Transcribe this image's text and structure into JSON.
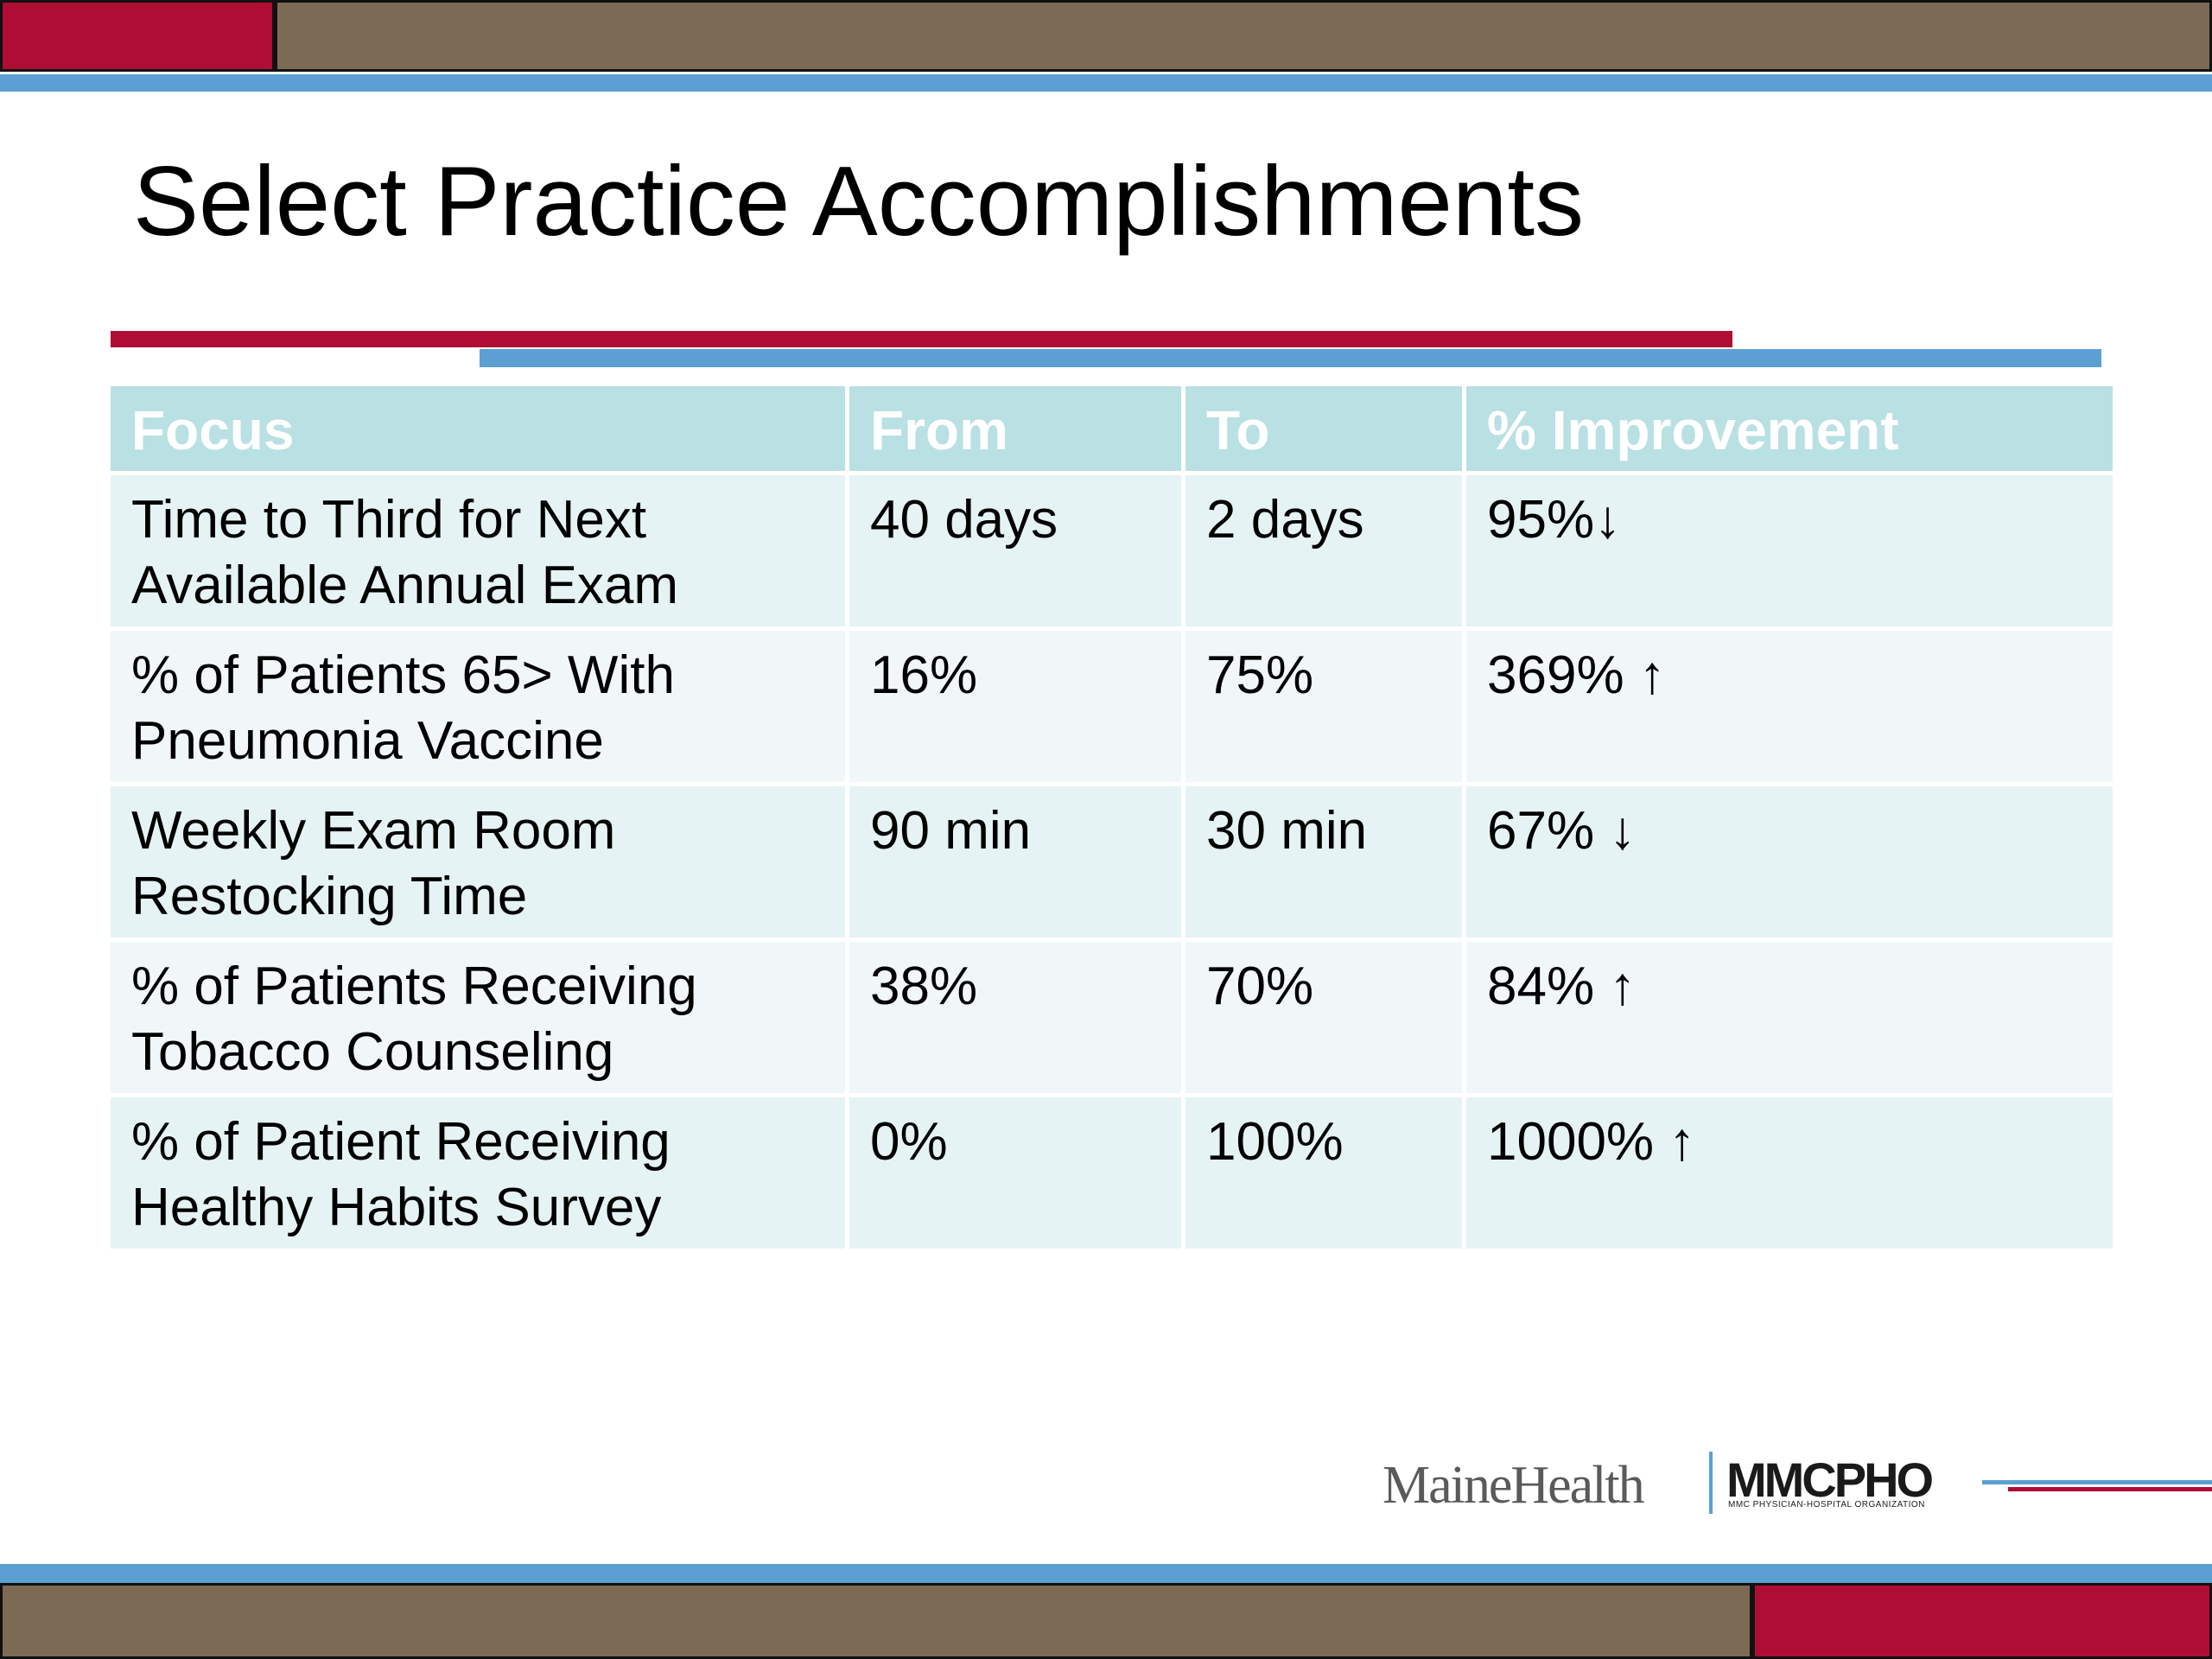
{
  "slide": {
    "title": "Select Practice Accomplishments"
  },
  "table": {
    "headers": [
      "Focus",
      "From",
      "To",
      "% Improvement"
    ],
    "rows": [
      {
        "focus": "Time to Third for Next Available Annual Exam",
        "from": "40 days",
        "to": "2 days",
        "improvement": "95%↓"
      },
      {
        "focus": "% of Patients 65> With Pneumonia Vaccine",
        "from": "16%",
        "to": "75%",
        "improvement": "369% ↑"
      },
      {
        "focus": "Weekly Exam Room Restocking Time",
        "from": "90 min",
        "to": "30 min",
        "improvement": "67% ↓"
      },
      {
        "focus": "% of Patients Receiving Tobacco Counseling",
        "from": "38%",
        "to": "70%",
        "improvement": "84% ↑"
      },
      {
        "focus": "% of Patient Receiving Healthy Habits Survey",
        "from": "0%",
        "to": "100%",
        "improvement": "1000% ↑"
      }
    ]
  },
  "logos": {
    "left": "MaineHealth",
    "right": "MMCPHO",
    "right_subtitle": "MMC PHYSICIAN-HOSPITAL ORGANIZATION"
  },
  "colors": {
    "accent_red": "#b00d35",
    "accent_brown": "#7c6a55",
    "accent_blue": "#5b9fd3",
    "header_fill": "#b9e0e3"
  }
}
